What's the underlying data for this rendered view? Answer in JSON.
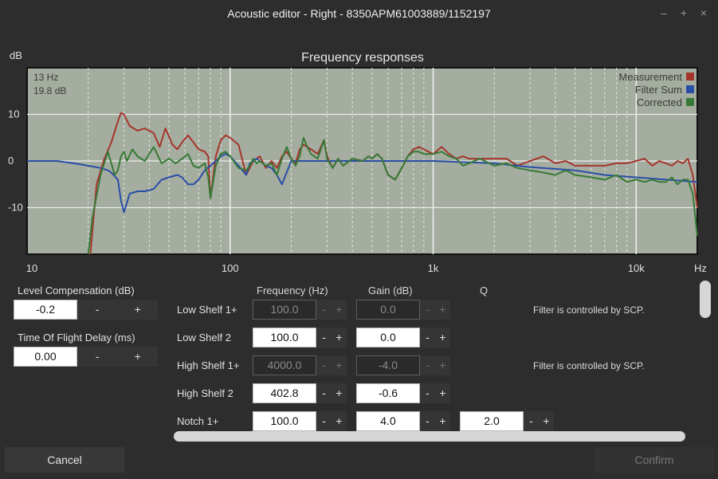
{
  "window": {
    "title": "Acoustic editor - Right - 8350APM61003889/1152197",
    "controls": {
      "minimize": "–",
      "maximize": "+",
      "close": "×"
    }
  },
  "chart_data": {
    "type": "line",
    "title": "Frequency responses",
    "ylabel": "dB",
    "xlabel": "Hz",
    "xscale": "log",
    "xlim": [
      10,
      20000
    ],
    "ylim": [
      -20,
      20
    ],
    "xticks": [
      {
        "value": 10,
        "label": "10"
      },
      {
        "value": 100,
        "label": "100"
      },
      {
        "value": 1000,
        "label": "1k"
      },
      {
        "value": 10000,
        "label": "10k"
      }
    ],
    "yticks": [
      {
        "value": 10,
        "label": "10"
      },
      {
        "value": 0,
        "label": "0"
      },
      {
        "value": -10,
        "label": "-10"
      }
    ],
    "grid": true,
    "legend_position": "top-right",
    "cursor_readout": {
      "freq": "13 Hz",
      "level": "19.8 dB"
    },
    "series": [
      {
        "name": "Measurement",
        "color": "#a6352e",
        "x": [
          20.5,
          22,
          24,
          26,
          28,
          29,
          30,
          32,
          35,
          38,
          42,
          45,
          48,
          52,
          55,
          58,
          62,
          66,
          70,
          75,
          78,
          80,
          85,
          90,
          95,
          100,
          110,
          120,
          130,
          140,
          150,
          160,
          170,
          180,
          190,
          200,
          210,
          220,
          230,
          240,
          250,
          270,
          290,
          300,
          320,
          340,
          360,
          400,
          450,
          480,
          500,
          530,
          560,
          600,
          650,
          700,
          750,
          800,
          850,
          900,
          1000,
          1100,
          1200,
          1300,
          1400,
          1500,
          1700,
          2000,
          2300,
          2600,
          3000,
          3500,
          4000,
          4500,
          5000,
          6000,
          7000,
          8000,
          9000,
          10000,
          11000,
          12000,
          13000,
          14000,
          15000,
          16000,
          17000,
          18000,
          19000,
          20000
        ],
        "y": [
          -20,
          -5,
          0.5,
          4,
          8.5,
          10.3,
          10,
          7.5,
          6.5,
          7,
          6,
          3,
          7,
          3.5,
          2.5,
          4,
          5.5,
          4,
          2.5,
          2,
          1,
          -8,
          1,
          4.5,
          5.5,
          5,
          3.5,
          -3,
          0,
          1,
          -1.5,
          0,
          -1.5,
          1,
          2,
          0.5,
          -0.5,
          2.5,
          3.5,
          3,
          2.5,
          1.5,
          4.5,
          1,
          -1.5,
          0.5,
          -1,
          0.5,
          0,
          1,
          0.5,
          1.5,
          0.5,
          -3,
          -4,
          -1.5,
          1,
          2.5,
          3,
          2.5,
          1.5,
          3,
          1.5,
          0.5,
          1,
          0.5,
          0.5,
          0.5,
          0.5,
          -1,
          0,
          1,
          -0.5,
          0,
          -1,
          -1,
          -1,
          -0.5,
          -0.5,
          0,
          0.5,
          -1,
          0,
          -0.5,
          -1,
          0,
          -0.5,
          0.5,
          -3,
          -10
        ]
      },
      {
        "name": "Filter Sum",
        "color": "#2b4ea6",
        "x": [
          10,
          14,
          17,
          20,
          23,
          25,
          26,
          28,
          29,
          30,
          32,
          35,
          38,
          42,
          46,
          50,
          55,
          58,
          62,
          66,
          70,
          75,
          80,
          85,
          90,
          95,
          100,
          110,
          115,
          120,
          125,
          130,
          135,
          140,
          150,
          160,
          170,
          180,
          200,
          250,
          300,
          400,
          500,
          700,
          1000,
          2000,
          3000,
          5000,
          7000,
          10000,
          14000,
          20000
        ],
        "y": [
          0,
          0,
          -0.5,
          -1,
          -1.5,
          -2,
          -2.5,
          -4,
          -8.5,
          -11,
          -7,
          -6.5,
          -6.5,
          -6,
          -4,
          -3.5,
          -3,
          -3.5,
          -5,
          -5,
          -4,
          -2,
          -1,
          0,
          1,
          1.5,
          1,
          -1,
          -2,
          -3,
          -0.5,
          0,
          0.5,
          0,
          -1,
          -1.5,
          -3,
          -5,
          0,
          0,
          0,
          0,
          0,
          0,
          0,
          -0.5,
          -1.3,
          -2,
          -3,
          -3.5,
          -4,
          -4.5
        ]
      },
      {
        "name": "Corrected",
        "color": "#367a36",
        "x": [
          20,
          21,
          23,
          25,
          27,
          28,
          29,
          30,
          31,
          33,
          35,
          38,
          42,
          46,
          50,
          54,
          58,
          62,
          66,
          70,
          75,
          78,
          80,
          85,
          90,
          95,
          100,
          110,
          120,
          125,
          130,
          135,
          140,
          150,
          160,
          170,
          180,
          190,
          200,
          210,
          220,
          230,
          240,
          250,
          270,
          290,
          300,
          320,
          340,
          360,
          400,
          450,
          480,
          500,
          530,
          560,
          600,
          650,
          700,
          750,
          800,
          850,
          900,
          1000,
          1100,
          1200,
          1300,
          1400,
          1500,
          1700,
          2000,
          2300,
          2600,
          3000,
          3500,
          4000,
          4500,
          5000,
          6000,
          7000,
          8000,
          9000,
          10000,
          11000,
          12000,
          13000,
          14000,
          15000,
          16000,
          17000,
          18000,
          19000,
          20000
        ],
        "y": [
          -20,
          -12,
          -3,
          2,
          -3,
          -2,
          1,
          2,
          0,
          2.5,
          1,
          0,
          3,
          -0.5,
          0.5,
          -0.5,
          0.5,
          1.5,
          -1,
          -1.5,
          -0.5,
          -3.5,
          -8,
          -1,
          1.5,
          2,
          1,
          -1.5,
          -2,
          -1,
          0.5,
          -0.5,
          0,
          -1,
          -0.5,
          -3,
          0.5,
          3,
          0.5,
          -1,
          1,
          5,
          3,
          1.5,
          0.5,
          4.5,
          0.5,
          -1.5,
          0.5,
          -1,
          0.5,
          0,
          1,
          0.5,
          1.5,
          0.5,
          -3,
          -4,
          -1.5,
          1,
          2,
          2,
          1.5,
          1.5,
          2,
          1,
          0.5,
          -1,
          -0.5,
          0.5,
          -1,
          -0.5,
          -1.5,
          -2,
          -2.5,
          -3,
          -2,
          -3,
          -3.5,
          -4,
          -3,
          -4.5,
          -4,
          -4.5,
          -4,
          -4.5,
          -4.5,
          -3.5,
          -5,
          -4,
          -4,
          -7,
          -16
        ]
      }
    ]
  },
  "left_panel": {
    "level_comp": {
      "label": "Level Compensation (dB)",
      "value": "-0.2",
      "minus": "-",
      "plus": "+"
    },
    "tof_delay": {
      "label": "Time Of Flight Delay (ms)",
      "value": "0.00",
      "minus": "-",
      "plus": "+"
    }
  },
  "filters": {
    "headers": {
      "frequency": "Frequency (Hz)",
      "gain": "Gain (dB)",
      "q": "Q"
    },
    "rows": [
      {
        "name": "Low Shelf 1+",
        "freq": "100.0",
        "gain": "0.0",
        "q": "",
        "note": "Filter is controlled by SCP.",
        "disabled": true
      },
      {
        "name": "Low Shelf 2",
        "freq": "100.0",
        "gain": "0.0",
        "q": "",
        "note": "",
        "disabled": false
      },
      {
        "name": "High Shelf 1+",
        "freq": "4000.0",
        "gain": "-4.0",
        "q": "",
        "note": "Filter is controlled by SCP.",
        "disabled": true
      },
      {
        "name": "High Shelf 2",
        "freq": "402.8",
        "gain": "-0.6",
        "q": "",
        "note": "",
        "disabled": false
      },
      {
        "name": "Notch 1+",
        "freq": "100.0",
        "gain": "4.0",
        "q": "2.0",
        "note": "",
        "disabled": false
      }
    ],
    "minus": "-",
    "plus": "+"
  },
  "buttons": {
    "cancel": "Cancel",
    "confirm": "Confirm"
  }
}
